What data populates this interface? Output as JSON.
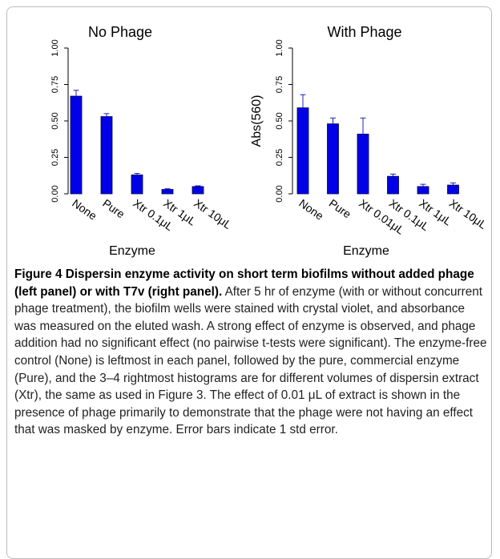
{
  "chart_data": [
    {
      "type": "bar",
      "title": "No Phage",
      "xlabel": "Enzyme",
      "categories": [
        "None",
        "Pure",
        "Xtr 0.1μL",
        "Xtr 1μL",
        "Xtr 10μL"
      ],
      "values": [
        0.67,
        0.53,
        0.13,
        0.03,
        0.05
      ],
      "errors": [
        0.04,
        0.02,
        0.01,
        0.005,
        0.005
      ],
      "color": "#0000e6",
      "ylim": [
        0,
        1
      ],
      "yticks": [
        {
          "value": 0,
          "label": "0.00"
        },
        {
          "value": 0.25,
          "label": "0.25"
        },
        {
          "value": 0.5,
          "label": "0.50"
        },
        {
          "value": 0.75,
          "label": "0.75"
        },
        {
          "value": 1,
          "label": "1.00"
        }
      ]
    },
    {
      "type": "bar",
      "title": "With Phage",
      "ylabel": "Abs(560)",
      "xlabel": "Enzyme",
      "categories": [
        "None",
        "Pure",
        "Xtr 0.01μL",
        "Xtr 0.1μL",
        "Xtr 1μL",
        "Xtr 10μL"
      ],
      "values": [
        0.59,
        0.48,
        0.41,
        0.12,
        0.05,
        0.06
      ],
      "errors": [
        0.09,
        0.04,
        0.11,
        0.015,
        0.015,
        0.015
      ],
      "color": "#0000e6",
      "ylim": [
        0,
        1
      ],
      "yticks": [
        {
          "value": 0,
          "label": "0.00"
        },
        {
          "value": 0.25,
          "label": "0.25"
        },
        {
          "value": 0.5,
          "label": "0.50"
        },
        {
          "value": 0.75,
          "label": "0.75"
        },
        {
          "value": 1,
          "label": "1.00"
        }
      ]
    }
  ],
  "caption": {
    "label": "Figure 4",
    "title": "Dispersin enzyme activity on short term biofilms without added phage (left panel) or with T7v (right panel).",
    "text": "After 5 hr of enzyme (with or without concurrent phage treatment), the biofilm wells were stained with crystal violet, and absorbance was measured on the eluted wash. A strong effect of enzyme is observed, and phage addition had no significant effect (no pairwise t-tests were significant). The enzyme-free control (None) is leftmost in each panel, followed by the pure, commercial enzyme (Pure), and the 3–4 rightmost histograms are for different volumes of dispersin extract (Xtr), the same as used in Figure 3. The effect of 0.01 μL of extract is shown in the presence of phage primarily to demonstrate that the phage were not having an effect that was masked by enzyme. Error bars indicate 1 std error."
  }
}
